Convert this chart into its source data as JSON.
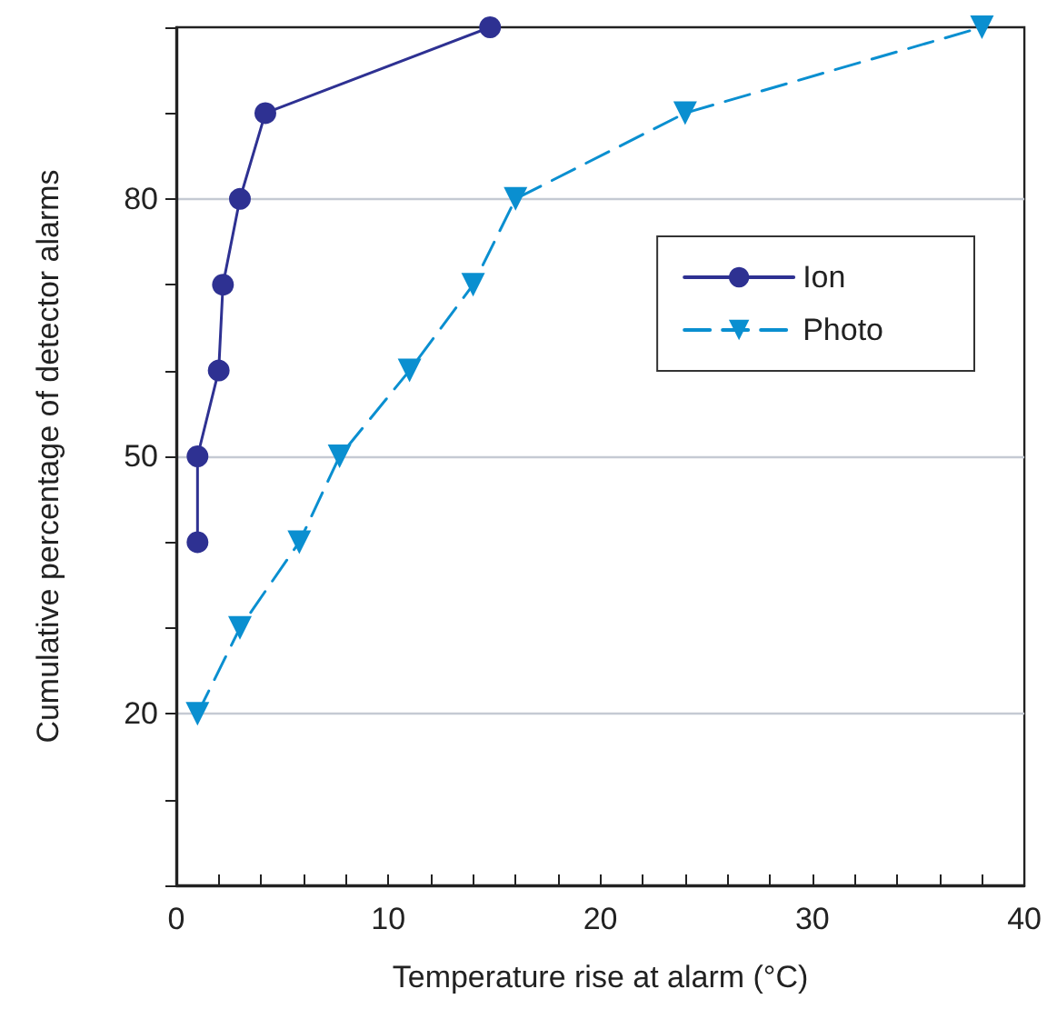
{
  "chart_data": {
    "type": "line",
    "xlabel": "Temperature rise at alarm (°C)",
    "ylabel": "Cumulative percentage of detector alarms",
    "xlim": [
      0,
      40
    ],
    "xticks": [
      0,
      {
        "value": 2,
        "label": null
      },
      {
        "value": 4,
        "label": null
      },
      {
        "value": 6,
        "label": null
      },
      {
        "value": 8,
        "label": null
      },
      10,
      {
        "value": 12,
        "label": null
      },
      {
        "value": 14,
        "label": null
      },
      {
        "value": 16,
        "label": null
      },
      {
        "value": 18,
        "label": null
      },
      20,
      {
        "value": 22,
        "label": null
      },
      {
        "value": 24,
        "label": null
      },
      {
        "value": 26,
        "label": null
      },
      {
        "value": 28,
        "label": null
      },
      30,
      {
        "value": 32,
        "label": null
      },
      {
        "value": 34,
        "label": null
      },
      {
        "value": 36,
        "label": null
      },
      {
        "value": 38,
        "label": null
      },
      40
    ],
    "ylim": [
      0,
      100
    ],
    "yticks": [
      {
        "value": 0,
        "label": null
      },
      {
        "value": 10,
        "label": null
      },
      20,
      {
        "value": 30,
        "label": null
      },
      {
        "value": 40,
        "label": null
      },
      50,
      {
        "value": 60,
        "label": null
      },
      {
        "value": 70,
        "label": null
      },
      80,
      {
        "value": 90,
        "label": null
      },
      {
        "value": 100,
        "label": null
      }
    ],
    "grid": "y",
    "legend": "right",
    "series": [
      {
        "name": "Ion",
        "color": "#2e3192",
        "marker": "circle",
        "line_style": "solid",
        "x": [
          1,
          1,
          2,
          2.2,
          3,
          4.2,
          14.8
        ],
        "values": [
          40,
          50,
          60,
          70,
          80,
          90,
          100
        ]
      },
      {
        "name": "Photo",
        "color": "#0a8fd0",
        "marker": "triangle",
        "line_style": "dashed",
        "x": [
          1,
          3,
          5.8,
          7.7,
          11,
          14,
          16,
          24,
          38
        ],
        "values": [
          20,
          30,
          40,
          50,
          60,
          70,
          80,
          90,
          100
        ]
      }
    ]
  }
}
